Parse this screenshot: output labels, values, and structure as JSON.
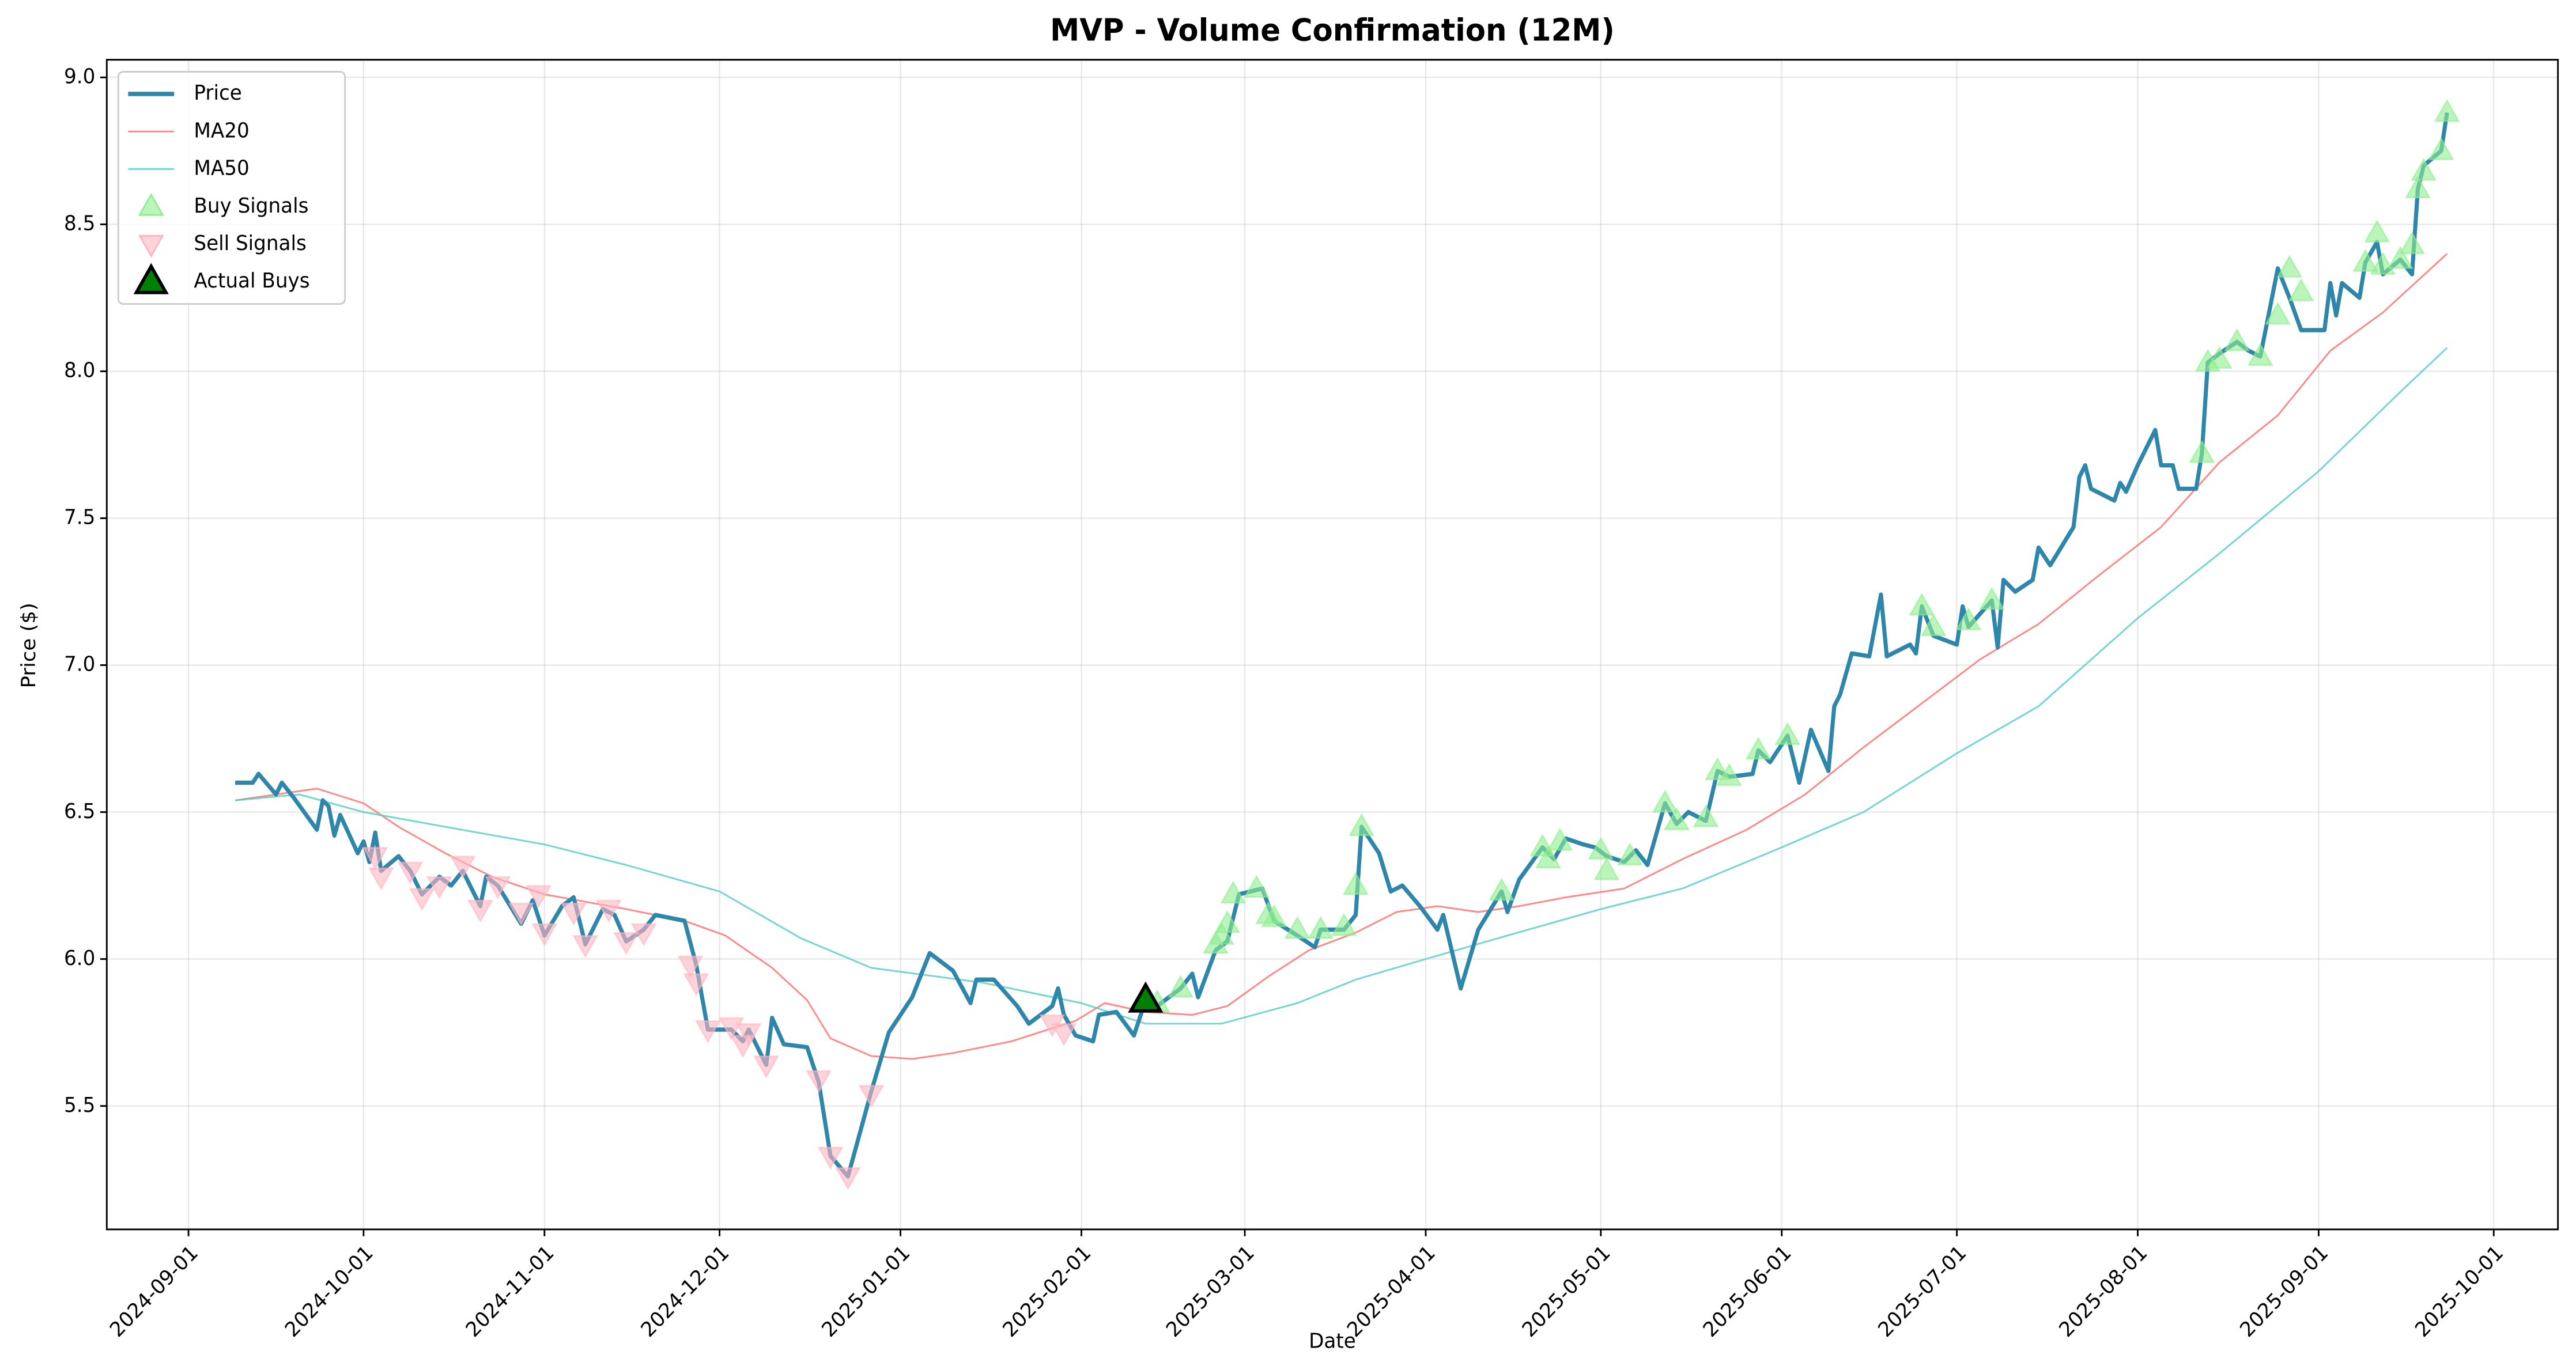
{
  "chart_data": {
    "type": "line",
    "title": "MVP - Volume Confirmation (12M)",
    "x_label": "Date",
    "y_label": "Price ($)",
    "xlim": [
      "2024-08-18",
      "2025-10-12"
    ],
    "ylim": [
      5.08,
      9.06
    ],
    "xticks": [
      "2024-09-01",
      "2024-10-01",
      "2024-11-01",
      "2024-12-01",
      "2025-01-01",
      "2025-02-01",
      "2025-03-01",
      "2025-04-01",
      "2025-05-01",
      "2025-06-01",
      "2025-07-01",
      "2025-08-01",
      "2025-09-01",
      "2025-10-01"
    ],
    "yticks": [
      5.5,
      {
        "value": 6,
        "label": "6.0"
      },
      6.5,
      {
        "value": 7,
        "label": "7.0"
      },
      7.5,
      {
        "value": 8,
        "label": "8.0"
      },
      8.5,
      {
        "value": 9,
        "label": "9.0"
      }
    ],
    "grid": true,
    "legend": "upper left",
    "series": [
      {
        "name": "Price",
        "kind": "line",
        "color": "#2e86ab",
        "width": 2.5,
        "x": [
          "2024-09-09",
          "2024-09-12",
          "2024-09-13",
          "2024-09-16",
          "2024-09-17",
          "2024-09-19",
          "2024-09-23",
          "2024-09-24",
          "2024-09-25",
          "2024-09-26",
          "2024-09-27",
          "2024-09-30",
          "2024-10-01",
          "2024-10-02",
          "2024-10-03",
          "2024-10-04",
          "2024-10-07",
          "2024-10-09",
          "2024-10-11",
          "2024-10-14",
          "2024-10-16",
          "2024-10-18",
          "2024-10-21",
          "2024-10-22",
          "2024-10-24",
          "2024-10-28",
          "2024-10-30",
          "2024-11-01",
          "2024-11-04",
          "2024-11-06",
          "2024-11-08",
          "2024-11-11",
          "2024-11-13",
          "2024-11-15",
          "2024-11-18",
          "2024-11-20",
          "2024-11-25",
          "2024-11-27",
          "2024-11-29",
          "2024-12-03",
          "2024-12-05",
          "2024-12-06",
          "2024-12-09",
          "2024-12-10",
          "2024-12-12",
          "2024-12-16",
          "2024-12-18",
          "2024-12-20",
          "2024-12-23",
          "2024-12-27",
          "2024-12-30",
          "2025-01-03",
          "2025-01-06",
          "2025-01-10",
          "2025-01-13",
          "2025-01-14",
          "2025-01-17",
          "2025-01-21",
          "2025-01-23",
          "2025-01-27",
          "2025-01-28",
          "2025-01-29",
          "2025-01-31",
          "2025-02-03",
          "2025-02-04",
          "2025-02-07",
          "2025-02-10",
          "2025-02-12",
          "2025-02-14",
          "2025-02-18",
          "2025-02-20",
          "2025-02-21",
          "2025-02-24",
          "2025-02-26",
          "2025-02-28",
          "2025-03-04",
          "2025-03-06",
          "2025-03-10",
          "2025-03-13",
          "2025-03-14",
          "2025-03-18",
          "2025-03-20",
          "2025-03-21",
          "2025-03-24",
          "2025-03-26",
          "2025-03-28",
          "2025-03-31",
          "2025-04-03",
          "2025-04-04",
          "2025-04-07",
          "2025-04-10",
          "2025-04-14",
          "2025-04-15",
          "2025-04-17",
          "2025-04-21",
          "2025-04-23",
          "2025-04-25",
          "2025-04-28",
          "2025-04-30",
          "2025-05-02",
          "2025-05-05",
          "2025-05-07",
          "2025-05-09",
          "2025-05-12",
          "2025-05-14",
          "2025-05-16",
          "2025-05-19",
          "2025-05-21",
          "2025-05-23",
          "2025-05-27",
          "2025-05-28",
          "2025-05-30",
          "2025-06-02",
          "2025-06-04",
          "2025-06-06",
          "2025-06-09",
          "2025-06-10",
          "2025-06-11",
          "2025-06-13",
          "2025-06-16",
          "2025-06-18",
          "2025-06-19",
          "2025-06-23",
          "2025-06-24",
          "2025-06-25",
          "2025-06-27",
          "2025-07-01",
          "2025-07-02",
          "2025-07-03",
          "2025-07-07",
          "2025-07-08",
          "2025-07-09",
          "2025-07-11",
          "2025-07-14",
          "2025-07-15",
          "2025-07-17",
          "2025-07-21",
          "2025-07-22",
          "2025-07-23",
          "2025-07-24",
          "2025-07-28",
          "2025-07-29",
          "2025-07-30",
          "2025-08-01",
          "2025-08-04",
          "2025-08-05",
          "2025-08-07",
          "2025-08-08",
          "2025-08-11",
          "2025-08-12",
          "2025-08-13",
          "2025-08-15",
          "2025-08-18",
          "2025-08-20",
          "2025-08-22",
          "2025-08-25",
          "2025-08-27",
          "2025-08-29",
          "2025-09-02",
          "2025-09-03",
          "2025-09-04",
          "2025-09-05",
          "2025-09-08",
          "2025-09-09",
          "2025-09-11",
          "2025-09-12",
          "2025-09-15",
          "2025-09-17",
          "2025-09-18",
          "2025-09-19",
          "2025-09-22",
          "2025-09-23"
        ],
        "values": [
          6.6,
          6.6,
          6.63,
          6.56,
          6.6,
          6.55,
          6.44,
          6.54,
          6.52,
          6.42,
          6.49,
          6.36,
          6.4,
          6.33,
          6.43,
          6.3,
          6.35,
          6.3,
          6.22,
          6.28,
          6.25,
          6.3,
          6.18,
          6.28,
          6.25,
          6.12,
          6.2,
          6.08,
          6.18,
          6.21,
          6.05,
          6.17,
          6.15,
          6.06,
          6.1,
          6.15,
          6.13,
          5.98,
          5.76,
          5.76,
          5.72,
          5.76,
          5.64,
          5.8,
          5.71,
          5.7,
          5.58,
          5.33,
          5.26,
          5.55,
          5.75,
          5.87,
          6.02,
          5.96,
          5.85,
          5.93,
          5.93,
          5.84,
          5.78,
          5.84,
          5.9,
          5.81,
          5.74,
          5.72,
          5.81,
          5.82,
          5.74,
          5.86,
          5.84,
          5.9,
          5.95,
          5.87,
          6.03,
          6.06,
          6.22,
          6.24,
          6.13,
          6.08,
          6.04,
          6.1,
          6.1,
          6.15,
          6.45,
          6.36,
          6.23,
          6.25,
          6.18,
          6.1,
          6.15,
          5.9,
          6.1,
          6.23,
          6.16,
          6.27,
          6.38,
          6.34,
          6.41,
          6.39,
          6.38,
          6.35,
          6.33,
          6.37,
          6.32,
          6.53,
          6.46,
          6.5,
          6.47,
          6.64,
          6.62,
          6.63,
          6.71,
          6.67,
          6.76,
          6.6,
          6.78,
          6.64,
          6.86,
          6.9,
          7.04,
          7.03,
          7.24,
          7.03,
          7.07,
          7.04,
          7.2,
          7.1,
          7.07,
          7.2,
          7.13,
          7.22,
          7.06,
          7.29,
          7.25,
          7.29,
          7.4,
          7.34,
          7.47,
          7.64,
          7.68,
          7.6,
          7.56,
          7.62,
          7.59,
          7.68,
          7.8,
          7.68,
          7.68,
          7.6,
          7.6,
          7.72,
          8.03,
          8.06,
          8.1,
          8.07,
          8.05,
          8.35,
          8.25,
          8.14,
          8.14,
          8.3,
          8.19,
          8.3,
          8.25,
          8.37,
          8.44,
          8.33,
          8.38,
          8.33,
          8.62,
          8.7,
          8.75,
          8.88
        ]
      },
      {
        "name": "MA20",
        "kind": "line",
        "color": "#ff6b6b",
        "width": 1,
        "opacity": 0.8,
        "x": [
          "2024-09-09",
          "2024-09-23",
          "2024-10-01",
          "2024-10-07",
          "2024-10-15",
          "2024-10-23",
          "2024-11-01",
          "2024-11-15",
          "2024-11-25",
          "2024-12-02",
          "2024-12-10",
          "2024-12-16",
          "2024-12-20",
          "2024-12-27",
          "2025-01-03",
          "2025-01-10",
          "2025-01-20",
          "2025-01-31",
          "2025-02-05",
          "2025-02-12",
          "2025-02-20",
          "2025-02-26",
          "2025-03-05",
          "2025-03-12",
          "2025-03-20",
          "2025-03-27",
          "2025-04-03",
          "2025-04-10",
          "2025-04-17",
          "2025-04-25",
          "2025-05-05",
          "2025-05-15",
          "2025-05-26",
          "2025-06-05",
          "2025-06-15",
          "2025-06-25",
          "2025-07-05",
          "2025-07-15",
          "2025-07-25",
          "2025-08-05",
          "2025-08-15",
          "2025-08-25",
          "2025-09-03",
          "2025-09-12",
          "2025-09-23"
        ],
        "values": [
          6.54,
          6.58,
          6.53,
          6.45,
          6.36,
          6.28,
          6.22,
          6.17,
          6.13,
          6.08,
          5.97,
          5.86,
          5.73,
          5.67,
          5.66,
          5.68,
          5.72,
          5.79,
          5.85,
          5.82,
          5.81,
          5.84,
          5.94,
          6.03,
          6.09,
          6.16,
          6.18,
          6.16,
          6.18,
          6.21,
          6.24,
          6.34,
          6.44,
          6.56,
          6.72,
          6.87,
          7.02,
          7.14,
          7.3,
          7.47,
          7.69,
          7.85,
          8.07,
          8.2,
          8.4
        ]
      },
      {
        "name": "MA50",
        "kind": "line",
        "color": "#4ecdc4",
        "width": 1,
        "opacity": 0.8,
        "x": [
          "2024-09-09",
          "2024-09-20",
          "2024-10-01",
          "2024-10-15",
          "2024-11-01",
          "2024-11-15",
          "2024-12-01",
          "2024-12-15",
          "2024-12-27",
          "2025-01-15",
          "2025-02-01",
          "2025-02-12",
          "2025-02-25",
          "2025-03-10",
          "2025-03-20",
          "2025-04-01",
          "2025-04-15",
          "2025-05-01",
          "2025-05-15",
          "2025-06-01",
          "2025-06-15",
          "2025-07-01",
          "2025-07-15",
          "2025-08-01",
          "2025-08-15",
          "2025-09-01",
          "2025-09-15",
          "2025-09-23"
        ],
        "values": [
          6.54,
          6.56,
          6.5,
          6.45,
          6.39,
          6.32,
          6.23,
          6.07,
          5.97,
          5.92,
          5.85,
          5.78,
          5.78,
          5.85,
          5.93,
          6.0,
          6.08,
          6.17,
          6.24,
          6.38,
          6.5,
          6.7,
          6.86,
          7.16,
          7.38,
          7.66,
          7.93,
          8.08
        ]
      },
      {
        "name": "Buy Signals",
        "kind": "scatter",
        "marker": "triangle-up",
        "color": "#90ee90",
        "opacity": 0.6,
        "x": [
          "2025-02-14",
          "2025-02-18",
          "2025-02-24",
          "2025-02-25",
          "2025-02-26",
          "2025-02-27",
          "2025-03-03",
          "2025-03-05",
          "2025-03-06",
          "2025-03-10",
          "2025-03-14",
          "2025-03-18",
          "2025-03-20",
          "2025-03-21",
          "2025-04-14",
          "2025-04-21",
          "2025-04-22",
          "2025-04-24",
          "2025-05-01",
          "2025-05-02",
          "2025-05-06",
          "2025-05-12",
          "2025-05-14",
          "2025-05-19",
          "2025-05-21",
          "2025-05-23",
          "2025-05-28",
          "2025-06-02",
          "2025-06-25",
          "2025-06-27",
          "2025-07-03",
          "2025-07-07",
          "2025-08-12",
          "2025-08-13",
          "2025-08-15",
          "2025-08-18",
          "2025-08-22",
          "2025-08-25",
          "2025-08-27",
          "2025-08-29",
          "2025-09-09",
          "2025-09-11",
          "2025-09-12",
          "2025-09-15",
          "2025-09-17",
          "2025-09-18",
          "2025-09-19",
          "2025-09-22",
          "2025-09-23"
        ],
        "values": [
          5.85,
          5.9,
          6.05,
          6.08,
          6.12,
          6.22,
          6.24,
          6.15,
          6.14,
          6.1,
          6.1,
          6.11,
          6.25,
          6.45,
          6.23,
          6.38,
          6.34,
          6.4,
          6.37,
          6.3,
          6.35,
          6.53,
          6.47,
          6.48,
          6.64,
          6.62,
          6.71,
          6.76,
          7.2,
          7.13,
          7.15,
          7.22,
          7.72,
          8.03,
          8.04,
          8.1,
          8.05,
          8.19,
          8.35,
          8.27,
          8.37,
          8.47,
          8.36,
          8.38,
          8.43,
          8.62,
          8.68,
          8.75,
          8.88
        ]
      },
      {
        "name": "Sell Signals",
        "kind": "scatter",
        "marker": "triangle-down",
        "color": "#ffb6c1",
        "opacity": 0.6,
        "x": [
          "2024-10-03",
          "2024-10-04",
          "2024-10-09",
          "2024-10-11",
          "2024-10-14",
          "2024-10-18",
          "2024-10-21",
          "2024-10-24",
          "2024-10-28",
          "2024-10-31",
          "2024-11-01",
          "2024-11-06",
          "2024-11-08",
          "2024-11-12",
          "2024-11-15",
          "2024-11-18",
          "2024-11-26",
          "2024-11-27",
          "2024-11-29",
          "2024-12-03",
          "2024-12-05",
          "2024-12-06",
          "2024-12-09",
          "2024-12-18",
          "2024-12-20",
          "2024-12-23",
          "2024-12-27",
          "2025-01-27",
          "2025-01-29"
        ],
        "values": [
          6.35,
          6.28,
          6.3,
          6.21,
          6.25,
          6.32,
          6.17,
          6.25,
          6.16,
          6.22,
          6.09,
          6.16,
          6.05,
          6.17,
          6.06,
          6.09,
          5.98,
          5.92,
          5.76,
          5.77,
          5.71,
          5.75,
          5.64,
          5.59,
          5.33,
          5.26,
          5.54,
          5.78,
          5.75
        ]
      },
      {
        "name": "Actual Buys",
        "kind": "scatter",
        "marker": "triangle-up-large",
        "color": "#008000",
        "edge": "#000000",
        "opacity": 1,
        "x": [
          "2025-02-12"
        ],
        "values": [
          5.86
        ]
      }
    ]
  }
}
